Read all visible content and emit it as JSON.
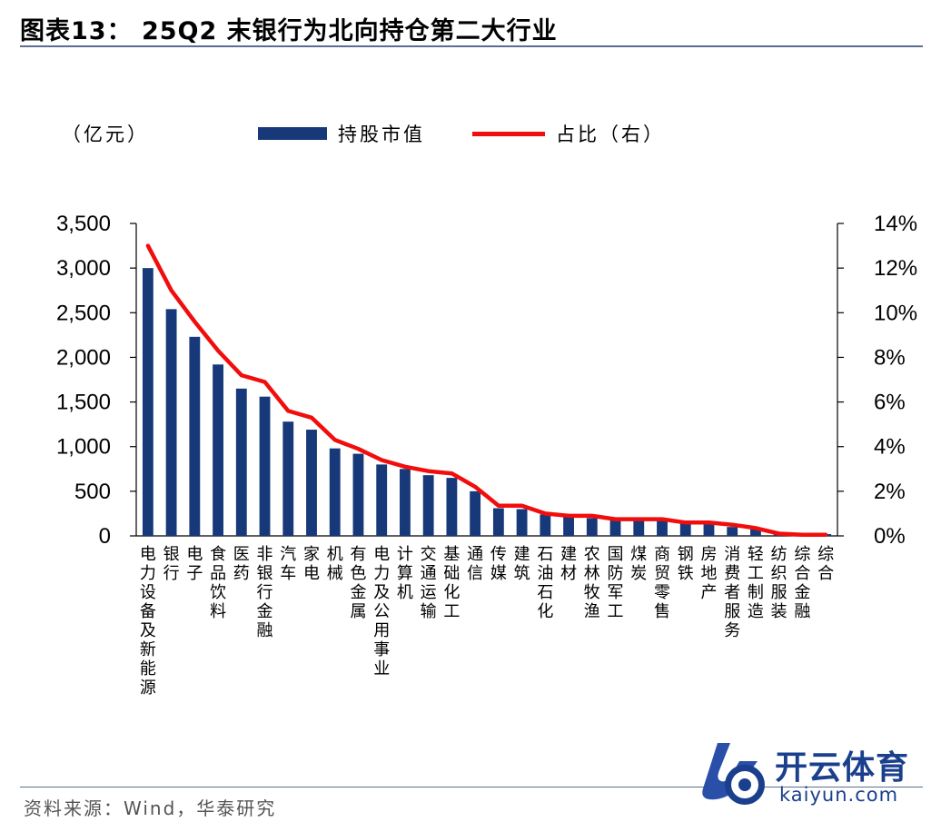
{
  "title": "图表13：  25Q2 末银行为北向持仓第二大行业",
  "unit_label": "（亿元）",
  "source": "资料来源：Wind，华泰研究",
  "watermark": {
    "name": "开云体育",
    "domain": "kaiyun.com"
  },
  "colors": {
    "bar": "#17397a",
    "line": "#f20d0d",
    "axis": "#000000"
  },
  "chart_data": {
    "type": "bar",
    "title": "",
    "legend_position": "top",
    "categories": [
      "电力设备及新能源",
      "银行",
      "电子",
      "食品饮料",
      "医药",
      "非银行金融",
      "汽车",
      "家电",
      "机械",
      "有色金属",
      "电力及公用事业",
      "计算机",
      "交通运输",
      "基础化工",
      "通信",
      "传媒",
      "建筑",
      "石油石化",
      "建材",
      "农林牧渔",
      "国防军工",
      "煤炭",
      "商贸零售",
      "钢铁",
      "房地产",
      "消费者服务",
      "轻工制造",
      "纺织服装",
      "综合金融",
      "综合"
    ],
    "series": [
      {
        "name": "持股市值",
        "type": "bar",
        "axis": "left",
        "values": [
          3000,
          2540,
          2230,
          1920,
          1650,
          1560,
          1280,
          1190,
          980,
          920,
          800,
          750,
          680,
          650,
          500,
          310,
          300,
          240,
          210,
          200,
          180,
          170,
          170,
          140,
          140,
          100,
          80,
          40,
          20,
          20
        ]
      },
      {
        "name": "占比（右）",
        "type": "line",
        "axis": "right",
        "values": [
          13.0,
          11.0,
          9.6,
          8.3,
          7.2,
          6.9,
          5.6,
          5.3,
          4.3,
          3.9,
          3.4,
          3.1,
          2.9,
          2.8,
          2.2,
          1.35,
          1.35,
          1.0,
          0.9,
          0.9,
          0.75,
          0.75,
          0.75,
          0.6,
          0.6,
          0.5,
          0.35,
          0.1,
          0.05,
          0.05
        ]
      }
    ],
    "y_left": {
      "min": 0,
      "max": 3500,
      "ticks": [
        0,
        500,
        1000,
        1500,
        2000,
        2500,
        3000,
        3500
      ],
      "tick_labels": [
        "0",
        "500",
        "1,000",
        "1,500",
        "2,000",
        "2,500",
        "3,000",
        "3,500"
      ]
    },
    "y_right": {
      "min": 0,
      "max": 14,
      "ticks": [
        0,
        2,
        4,
        6,
        8,
        10,
        12,
        14
      ],
      "tick_labels": [
        "0%",
        "2%",
        "4%",
        "6%",
        "8%",
        "10%",
        "12%",
        "14%"
      ]
    },
    "grid": false
  }
}
